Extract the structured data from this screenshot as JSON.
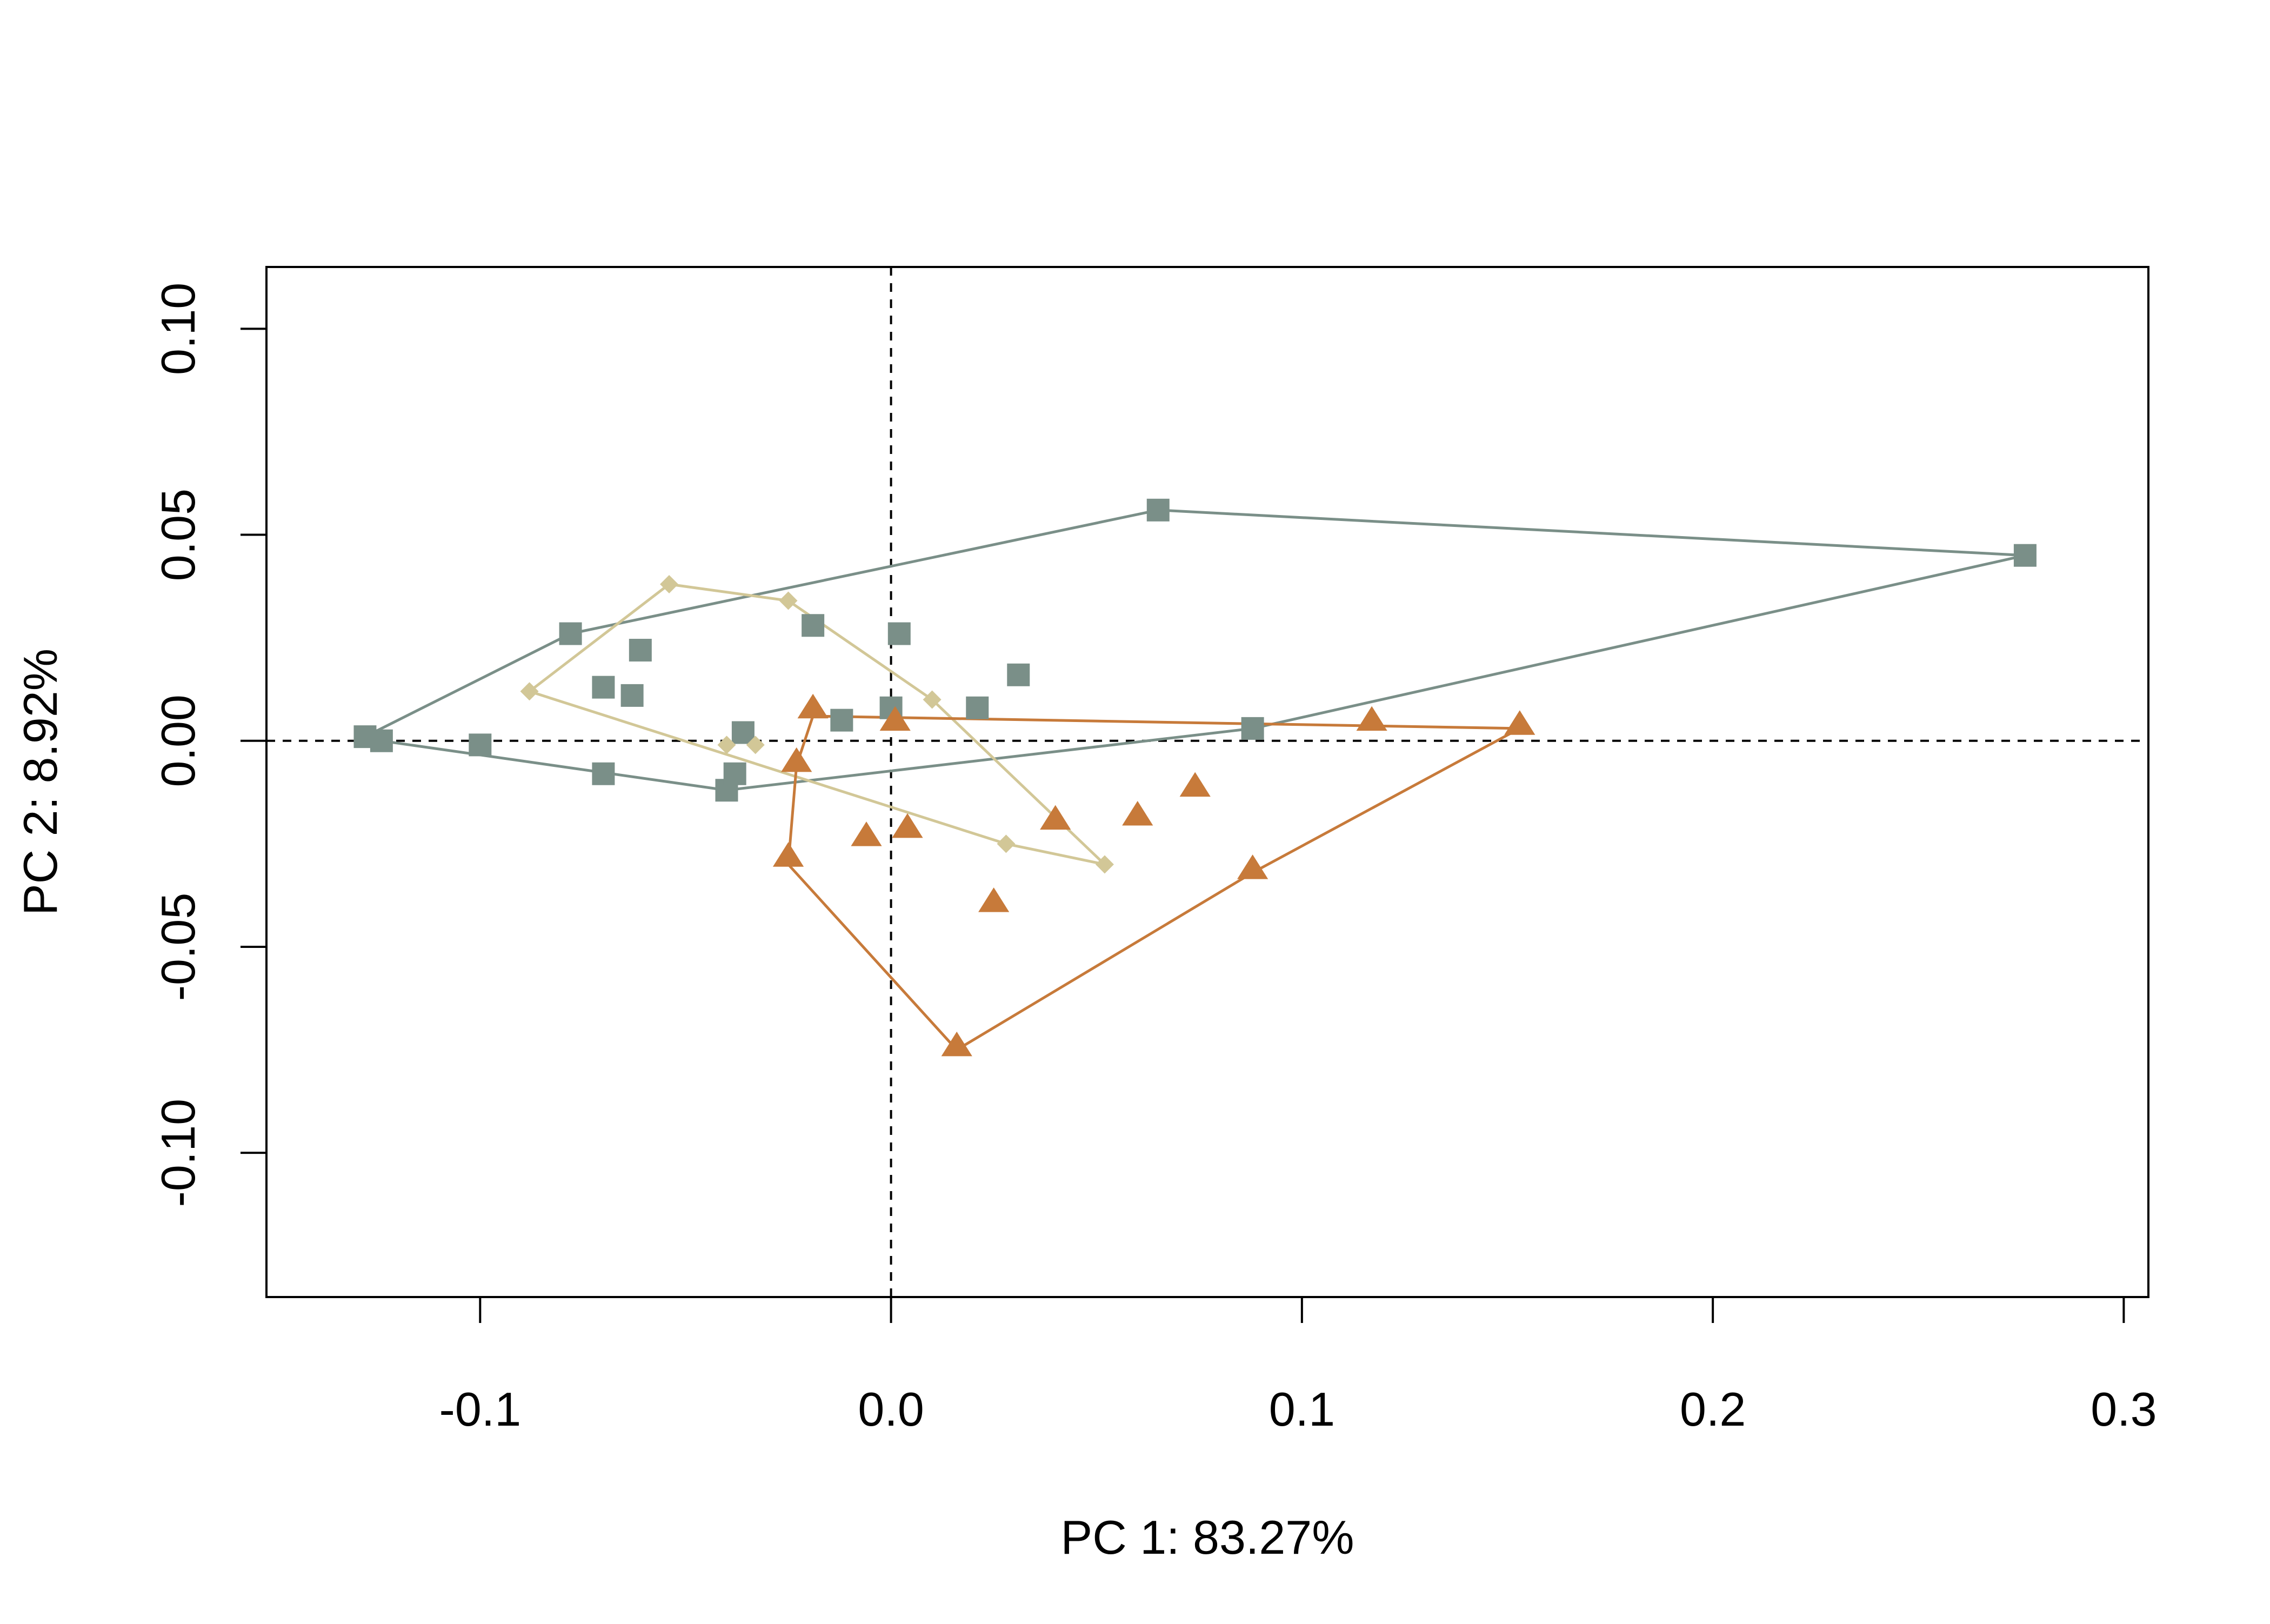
{
  "chart_data": {
    "type": "scatter",
    "title": "",
    "xlabel": "PC 1: 83.27%",
    "ylabel": "PC 2: 8.92%",
    "xlim": [
      -0.152,
      0.306
    ],
    "ylim": [
      -0.135,
      0.115
    ],
    "xticks": [
      -0.1,
      0.0,
      0.1,
      0.2,
      0.3
    ],
    "xtick_labels": [
      "-0.1",
      "0.0",
      "0.1",
      "0.2",
      "0.3"
    ],
    "yticks": [
      -0.1,
      -0.05,
      0.0,
      0.05,
      0.1
    ],
    "ytick_labels": [
      "-0.10",
      "-0.05",
      "0.00",
      "0.05",
      "0.10"
    ],
    "reference_lines": {
      "x": 0.0,
      "y": 0.0,
      "style": "dashed"
    },
    "grid": false,
    "legend": "none",
    "series": [
      {
        "marker": "square",
        "color": "#7a8f88",
        "points": [
          [
            -0.128,
            0.001
          ],
          [
            -0.124,
            0.0
          ],
          [
            -0.1,
            -0.001
          ],
          [
            -0.078,
            0.026
          ],
          [
            -0.07,
            0.013
          ],
          [
            -0.063,
            0.011
          ],
          [
            -0.061,
            0.022
          ],
          [
            -0.07,
            -0.008
          ],
          [
            -0.04,
            -0.012
          ],
          [
            -0.038,
            -0.008
          ],
          [
            -0.036,
            0.002
          ],
          [
            -0.019,
            0.028
          ],
          [
            -0.012,
            0.005
          ],
          [
            0.0,
            0.008
          ],
          [
            0.002,
            0.026
          ],
          [
            0.021,
            0.008
          ],
          [
            0.031,
            0.016
          ],
          [
            0.065,
            0.056
          ],
          [
            0.088,
            0.003
          ],
          [
            0.276,
            0.045
          ]
        ],
        "hull": [
          [
            -0.128,
            0.001
          ],
          [
            -0.078,
            0.026
          ],
          [
            0.065,
            0.056
          ],
          [
            0.276,
            0.045
          ],
          [
            0.088,
            0.003
          ],
          [
            -0.04,
            -0.012
          ],
          [
            -0.124,
            0.0
          ]
        ]
      },
      {
        "marker": "diamond",
        "color": "#d2c797",
        "points": [
          [
            -0.088,
            0.012
          ],
          [
            -0.054,
            0.038
          ],
          [
            -0.025,
            0.034
          ],
          [
            0.01,
            0.01
          ],
          [
            -0.04,
            -0.001
          ],
          [
            -0.033,
            -0.001
          ],
          [
            0.028,
            -0.025
          ],
          [
            0.052,
            -0.03
          ]
        ],
        "hull": [
          [
            -0.088,
            0.012
          ],
          [
            -0.054,
            0.038
          ],
          [
            -0.025,
            0.034
          ],
          [
            0.01,
            0.01
          ],
          [
            0.052,
            -0.03
          ],
          [
            0.028,
            -0.025
          ],
          [
            -0.088,
            0.012
          ]
        ]
      },
      {
        "marker": "triangle",
        "color": "#c77a3a",
        "points": [
          [
            -0.019,
            0.008
          ],
          [
            0.001,
            0.005
          ],
          [
            -0.023,
            -0.005
          ],
          [
            -0.025,
            -0.028
          ],
          [
            -0.006,
            -0.023
          ],
          [
            0.004,
            -0.021
          ],
          [
            0.025,
            -0.039
          ],
          [
            0.04,
            -0.019
          ],
          [
            0.06,
            -0.018
          ],
          [
            0.074,
            -0.011
          ],
          [
            0.088,
            -0.031
          ],
          [
            0.117,
            0.005
          ],
          [
            0.153,
            0.004
          ],
          [
            0.016,
            -0.074
          ]
        ],
        "hull": [
          [
            -0.019,
            0.006
          ],
          [
            0.153,
            0.003
          ],
          [
            0.088,
            -0.032
          ],
          [
            0.016,
            -0.075
          ],
          [
            -0.025,
            -0.03
          ],
          [
            -0.023,
            -0.006
          ],
          [
            -0.019,
            0.006
          ]
        ]
      }
    ]
  }
}
